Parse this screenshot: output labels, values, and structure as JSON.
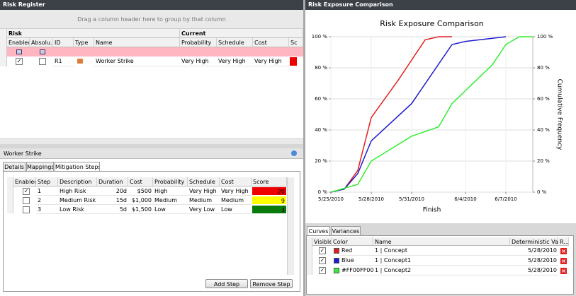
{
  "risk_register": {
    "title": "Risk Register",
    "group_hint": "Drag a column header here to group by that column",
    "header_groups": [
      "Risk",
      "Current"
    ],
    "columns": [
      "Enabled",
      "Absolu...",
      "ID",
      "Type",
      "Name",
      "Probability",
      "Schedule",
      "Cost",
      "Sc"
    ],
    "rows": [
      [
        "R1",
        "Worker Strike",
        "Very High",
        "Very High",
        "Very High"
      ]
    ]
  },
  "detail": {
    "title": "Worker Strike",
    "tabs": [
      "Details",
      "Mappings",
      "Mitigation Steps"
    ],
    "columns": [
      "Enabled",
      "Step",
      "Description",
      "Duration",
      "Cost",
      "Probability",
      "Schedule",
      "Cost",
      "Score"
    ],
    "rows": [
      [
        "1",
        "High Risk",
        "20d",
        "$500",
        "High",
        "Very High",
        "Very High",
        "20"
      ],
      [
        "2",
        "Medium Risk",
        "15d",
        "$1,000",
        "Medium",
        "Medium",
        "Medium",
        "9"
      ],
      [
        "3",
        "Low Risk",
        "5d",
        "$1,500",
        "Low",
        "Very Low",
        "Low",
        "3"
      ]
    ],
    "buttons": [
      "Add Step",
      "Remove Step"
    ]
  },
  "exposure": {
    "title": "Risk Exposure Comparison"
  },
  "chart_data": {
    "type": "line",
    "title": "Risk Exposure Comparison",
    "x_label": "Finish",
    "y2_label": "Cumulative Frequency",
    "xlim": [
      "2010-05-25",
      "2010-06-09"
    ],
    "xticks": [
      {
        "value": "2010-05-25",
        "label": "5/25/2010"
      },
      {
        "value": "2010-05-28",
        "label": "5/28/2010"
      },
      {
        "value": "2010-05-31",
        "label": "5/31/2010"
      },
      {
        "value": "2010-06-04",
        "label": "6/4/2010"
      },
      {
        "value": "2010-06-07",
        "label": "6/7/2010"
      }
    ],
    "ylim": [
      0,
      100
    ],
    "yticks": [
      {
        "value": 0,
        "label": "0 %"
      },
      {
        "value": 20,
        "label": "20 %"
      },
      {
        "value": 40,
        "label": "40 %"
      },
      {
        "value": 60,
        "label": "60 %"
      },
      {
        "value": 80,
        "label": "80 %"
      },
      {
        "value": 100,
        "label": "100 %"
      }
    ],
    "y2lim": [
      0,
      100
    ],
    "y2ticks": [
      {
        "value": 0,
        "label": "0 %"
      },
      {
        "value": 20,
        "label": "20 %"
      },
      {
        "value": 40,
        "label": "40 %"
      },
      {
        "value": 60,
        "label": "60 %"
      },
      {
        "value": 80,
        "label": "80 %"
      },
      {
        "value": 100,
        "label": "100 %"
      }
    ],
    "grid": true,
    "series": [
      {
        "color": "#e02020",
        "x": [
          "2010-05-25",
          "2010-05-26",
          "2010-05-27",
          "2010-05-28",
          "2010-05-30",
          "2010-05-31",
          "2010-06-01",
          "2010-06-02",
          "2010-06-03"
        ],
        "values": [
          0,
          2,
          14,
          48,
          72,
          85,
          98,
          100,
          100
        ]
      },
      {
        "color": "#1c1ccc",
        "x": [
          "2010-05-25",
          "2010-05-26",
          "2010-05-27",
          "2010-05-28",
          "2010-05-31",
          "2010-06-03",
          "2010-06-04",
          "2010-06-07"
        ],
        "values": [
          0,
          2,
          12,
          33,
          57,
          95,
          97,
          100
        ]
      },
      {
        "color": "#33ee33",
        "x": [
          "2010-05-25",
          "2010-05-27",
          "2010-05-28",
          "2010-05-31",
          "2010-06-01",
          "2010-06-02",
          "2010-06-03",
          "2010-06-06",
          "2010-06-07",
          "2010-06-08",
          "2010-06-09"
        ],
        "values": [
          0,
          5,
          20,
          36,
          39,
          42,
          57,
          82,
          95,
          100,
          100
        ]
      }
    ]
  },
  "curves": {
    "tabs": [
      "Curves",
      "Variances"
    ],
    "columns": [
      "Visible",
      "Color",
      "Name",
      "Deterministic Value",
      "R..."
    ],
    "rows": [
      [
        "Red",
        "1 | Concept",
        "5/28/2010"
      ],
      [
        "Blue",
        "1 | Concept1",
        "5/28/2010"
      ],
      [
        "#FF00FF00",
        "1 | Concept2",
        "5/28/2010"
      ]
    ]
  }
}
